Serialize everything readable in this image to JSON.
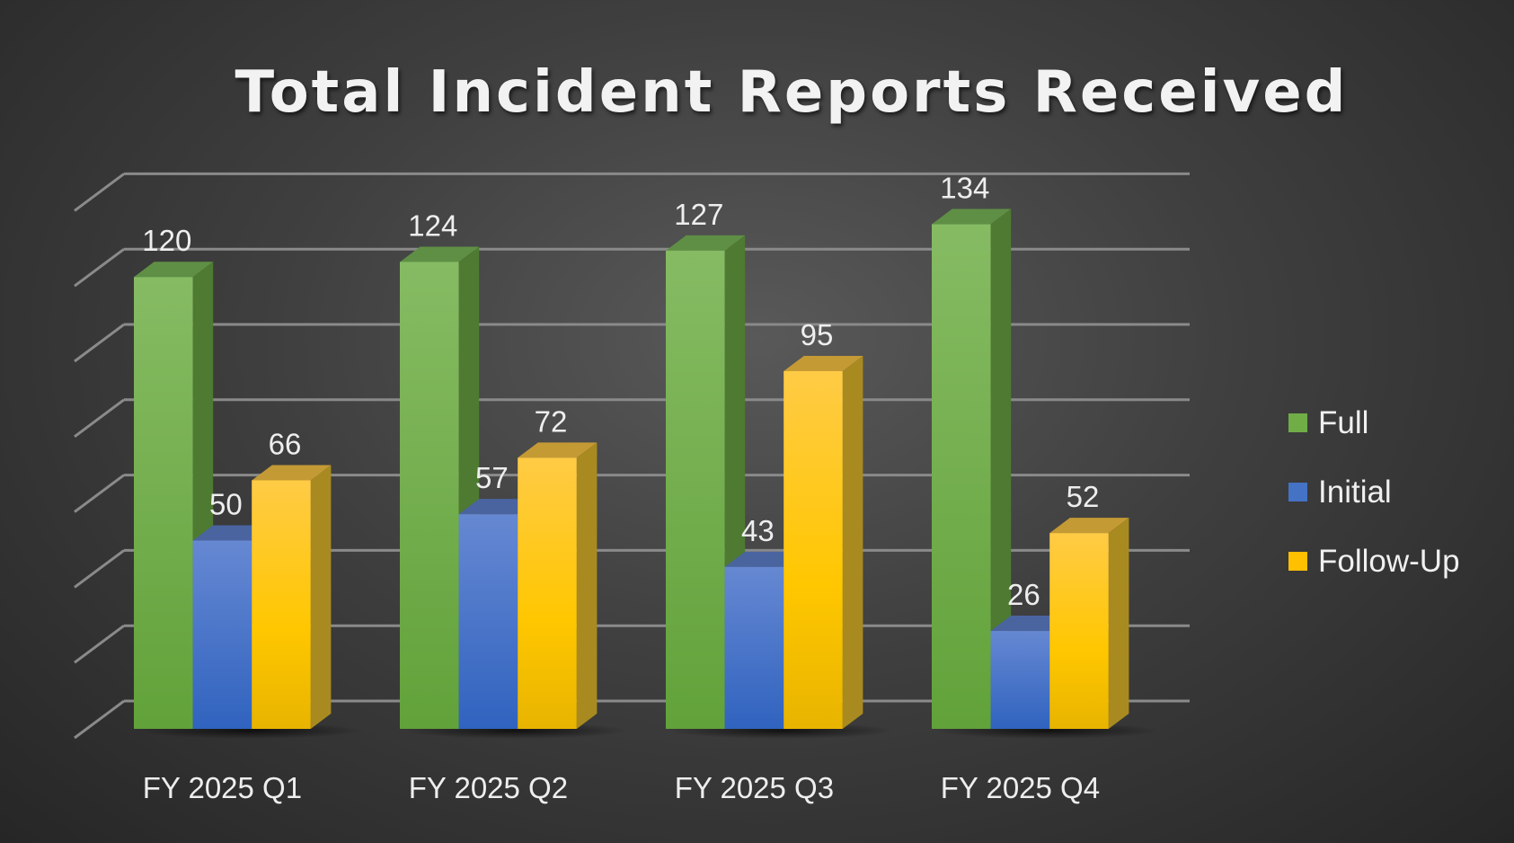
{
  "chart_data": {
    "type": "bar",
    "title": "Total Incident Reports Received",
    "categories": [
      "FY 2025 Q1",
      "FY 2025 Q2",
      "FY 2025 Q3",
      "FY 2025 Q4"
    ],
    "series": [
      {
        "name": "Full",
        "values": [
          120,
          124,
          127,
          134
        ],
        "color": "#70ad47"
      },
      {
        "name": "Initial",
        "values": [
          50,
          57,
          43,
          26
        ],
        "color": "#4472c4"
      },
      {
        "name": "Follow-Up",
        "values": [
          66,
          72,
          95,
          52
        ],
        "color": "#ffc000"
      }
    ],
    "xlabel": "",
    "ylabel": "",
    "ylim": [
      0,
      140
    ],
    "ytick_step": 20,
    "grid": true,
    "legend": "right",
    "style": "3d-clustered-column"
  }
}
